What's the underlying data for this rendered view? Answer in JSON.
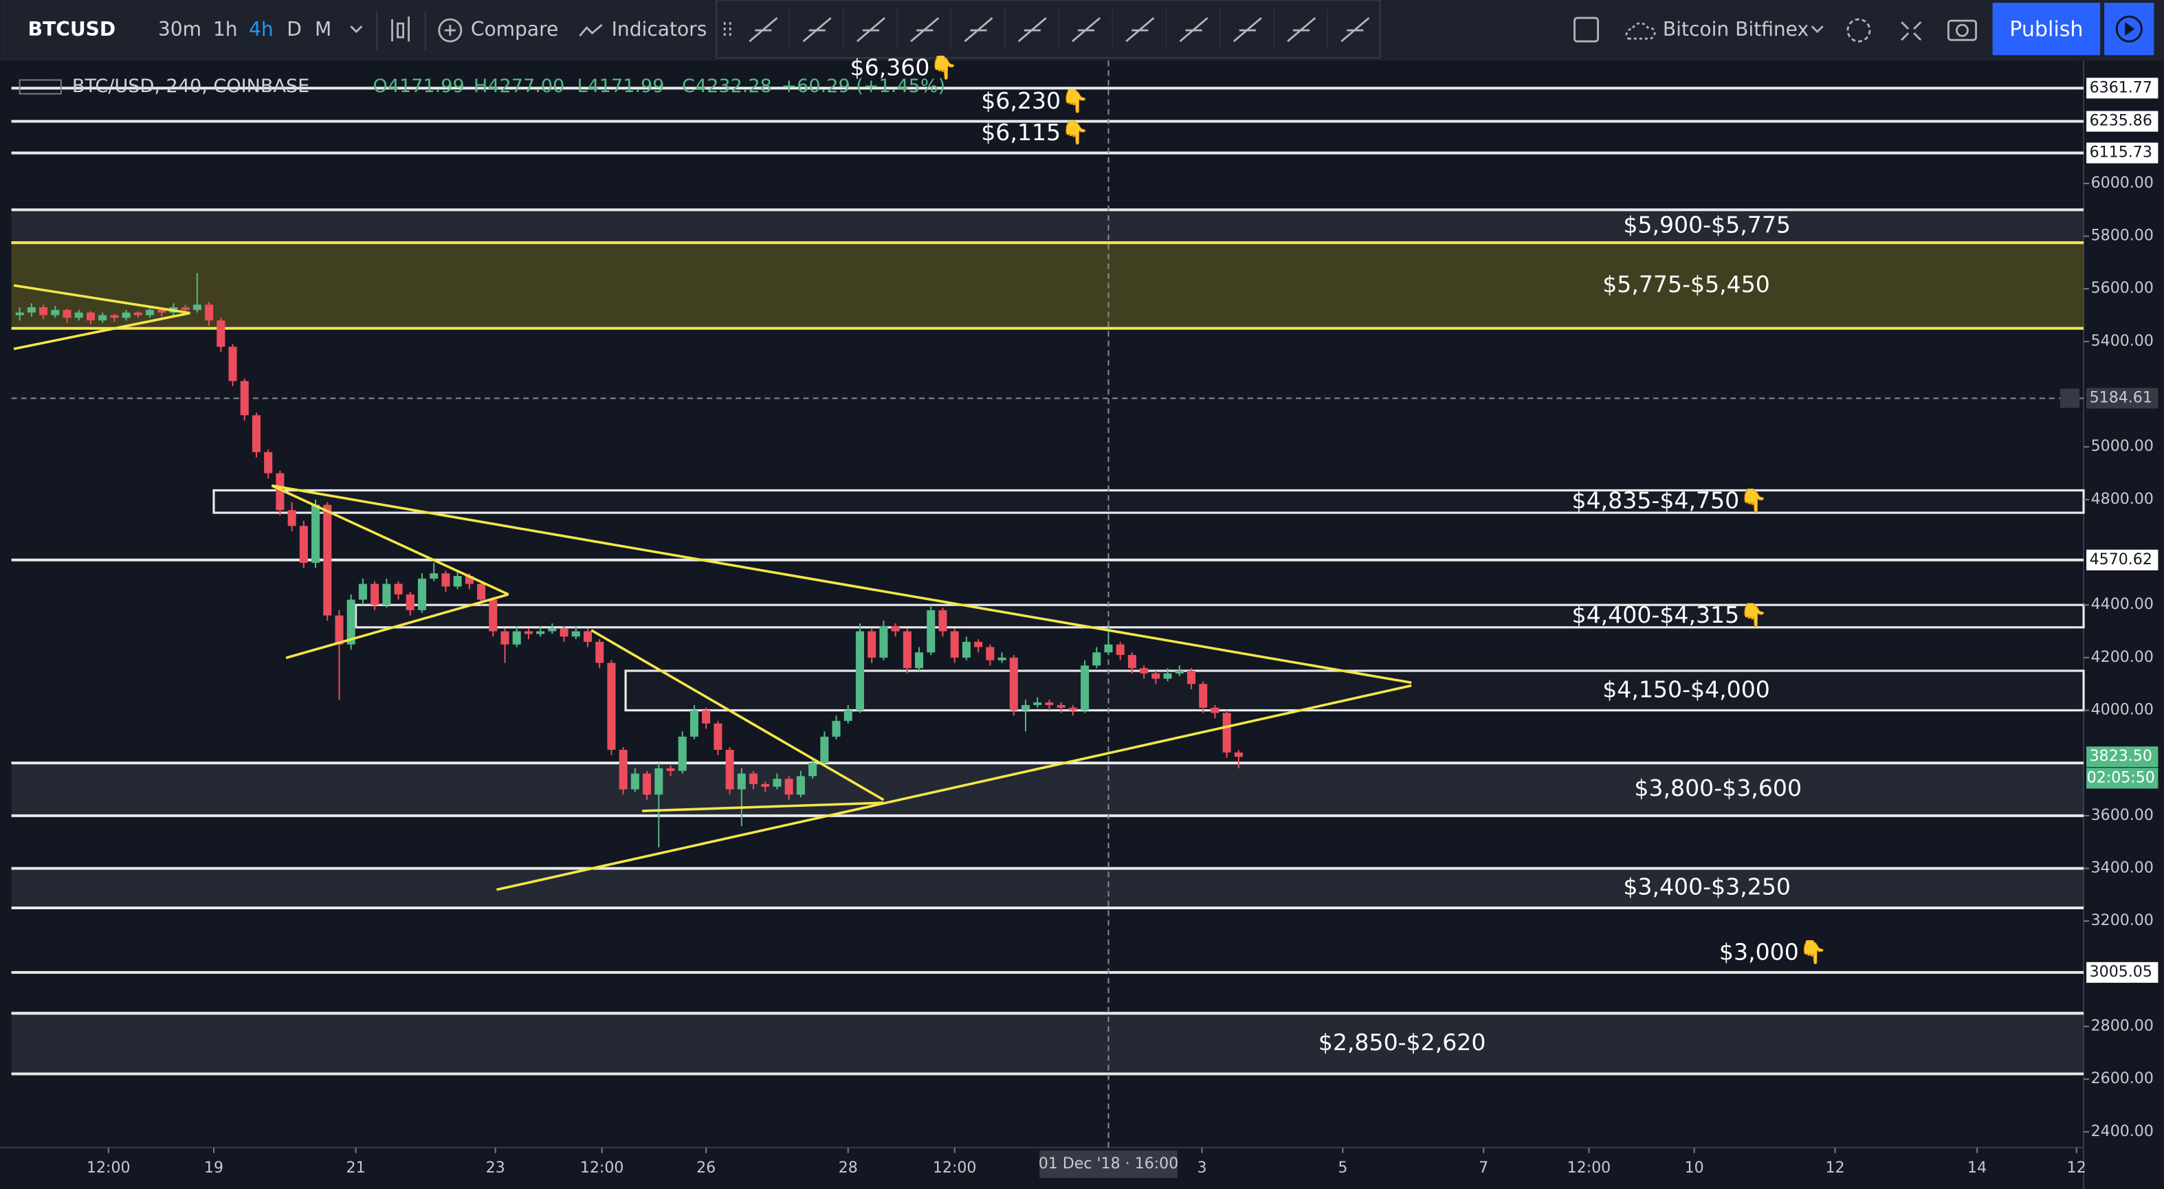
{
  "toolbar": {
    "symbol": "BTCUSD",
    "intervals": [
      "30m",
      "1h",
      "4h",
      "D",
      "M"
    ],
    "compare": "Compare",
    "indicators": "Indicators",
    "exchange": "Bitcoin Bitfinex",
    "publish": "Publish"
  },
  "chart_data": {
    "type": "candlestick",
    "title": "BTC/USD, 240, COINBASE",
    "legend_values": [
      "O4171.99",
      "H4277.00",
      "L4171.99",
      "C4232.28",
      "+60.29 (+1.45%)"
    ],
    "up_color": "#53b987",
    "down_color": "#eb4d5c",
    "candles": [
      [
        5500,
        5530,
        5480,
        5510
      ],
      [
        5510,
        5545,
        5495,
        5530
      ],
      [
        5530,
        5540,
        5485,
        5500
      ],
      [
        5500,
        5535,
        5490,
        5520
      ],
      [
        5520,
        5525,
        5470,
        5490
      ],
      [
        5490,
        5520,
        5480,
        5510
      ],
      [
        5510,
        5515,
        5465,
        5480
      ],
      [
        5480,
        5510,
        5470,
        5500
      ],
      [
        5500,
        5505,
        5475,
        5490
      ],
      [
        5490,
        5520,
        5480,
        5510
      ],
      [
        5510,
        5515,
        5490,
        5500
      ],
      [
        5500,
        5530,
        5490,
        5520
      ],
      [
        5520,
        5525,
        5495,
        5510
      ],
      [
        5510,
        5545,
        5500,
        5530
      ],
      [
        5530,
        5540,
        5505,
        5520
      ],
      [
        5520,
        5660,
        5510,
        5540
      ],
      [
        5540,
        5550,
        5460,
        5480
      ],
      [
        5480,
        5490,
        5360,
        5380
      ],
      [
        5380,
        5390,
        5230,
        5250
      ],
      [
        5250,
        5260,
        5100,
        5120
      ],
      [
        5120,
        5130,
        4960,
        4980
      ],
      [
        4980,
        4990,
        4880,
        4900
      ],
      [
        4900,
        4910,
        4740,
        4760
      ],
      [
        4760,
        4790,
        4680,
        4700
      ],
      [
        4700,
        4720,
        4540,
        4560
      ],
      [
        4560,
        4800,
        4540,
        4780
      ],
      [
        4780,
        4790,
        4340,
        4360
      ],
      [
        4360,
        4380,
        4040,
        4250
      ],
      [
        4250,
        4440,
        4230,
        4420
      ],
      [
        4420,
        4500,
        4400,
        4480
      ],
      [
        4480,
        4490,
        4380,
        4400
      ],
      [
        4400,
        4500,
        4390,
        4480
      ],
      [
        4480,
        4490,
        4420,
        4440
      ],
      [
        4440,
        4450,
        4360,
        4380
      ],
      [
        4380,
        4520,
        4370,
        4500
      ],
      [
        4500,
        4560,
        4490,
        4520
      ],
      [
        4520,
        4530,
        4450,
        4470
      ],
      [
        4470,
        4530,
        4460,
        4510
      ],
      [
        4510,
        4520,
        4460,
        4480
      ],
      [
        4480,
        4490,
        4400,
        4420
      ],
      [
        4420,
        4430,
        4280,
        4300
      ],
      [
        4300,
        4310,
        4180,
        4250
      ],
      [
        4250,
        4320,
        4240,
        4300
      ],
      [
        4300,
        4310,
        4270,
        4290
      ],
      [
        4290,
        4320,
        4280,
        4300
      ],
      [
        4300,
        4330,
        4290,
        4310
      ],
      [
        4310,
        4320,
        4260,
        4280
      ],
      [
        4280,
        4320,
        4270,
        4300
      ],
      [
        4300,
        4310,
        4240,
        4260
      ],
      [
        4260,
        4270,
        4160,
        4180
      ],
      [
        4180,
        4190,
        3830,
        3850
      ],
      [
        3850,
        3860,
        3680,
        3700
      ],
      [
        3700,
        3780,
        3690,
        3760
      ],
      [
        3760,
        3770,
        3660,
        3680
      ],
      [
        3680,
        3800,
        3480,
        3780
      ],
      [
        3780,
        3790,
        3750,
        3770
      ],
      [
        3770,
        3920,
        3760,
        3900
      ],
      [
        3900,
        4020,
        3890,
        4000
      ],
      [
        4000,
        4010,
        3930,
        3950
      ],
      [
        3950,
        3960,
        3830,
        3850
      ],
      [
        3850,
        3860,
        3680,
        3700
      ],
      [
        3700,
        3780,
        3560,
        3760
      ],
      [
        3760,
        3770,
        3700,
        3720
      ],
      [
        3720,
        3730,
        3690,
        3710
      ],
      [
        3710,
        3760,
        3700,
        3740
      ],
      [
        3740,
        3750,
        3660,
        3680
      ],
      [
        3680,
        3770,
        3670,
        3750
      ],
      [
        3750,
        3820,
        3740,
        3800
      ],
      [
        3800,
        3920,
        3790,
        3900
      ],
      [
        3900,
        3980,
        3890,
        3960
      ],
      [
        3960,
        4020,
        3950,
        4000
      ],
      [
        4000,
        4330,
        3990,
        4300
      ],
      [
        4300,
        4310,
        4180,
        4200
      ],
      [
        4200,
        4340,
        4190,
        4320
      ],
      [
        4320,
        4330,
        4280,
        4300
      ],
      [
        4300,
        4310,
        4140,
        4160
      ],
      [
        4160,
        4240,
        4150,
        4220
      ],
      [
        4220,
        4400,
        4210,
        4380
      ],
      [
        4380,
        4390,
        4280,
        4300
      ],
      [
        4300,
        4310,
        4180,
        4200
      ],
      [
        4200,
        4280,
        4190,
        4260
      ],
      [
        4260,
        4270,
        4220,
        4240
      ],
      [
        4240,
        4250,
        4170,
        4190
      ],
      [
        4190,
        4220,
        4180,
        4200
      ],
      [
        4200,
        4210,
        3980,
        4000
      ],
      [
        4000,
        4040,
        3920,
        4020
      ],
      [
        4020,
        4050,
        4010,
        4030
      ],
      [
        4030,
        4040,
        4000,
        4020
      ],
      [
        4020,
        4030,
        3990,
        4010
      ],
      [
        4010,
        4020,
        3980,
        4000
      ],
      [
        4000,
        4190,
        3990,
        4170
      ],
      [
        4170,
        4240,
        4160,
        4220
      ],
      [
        4220,
        4320,
        4210,
        4250
      ],
      [
        4250,
        4260,
        4190,
        4210
      ],
      [
        4210,
        4220,
        4140,
        4160
      ],
      [
        4160,
        4170,
        4120,
        4140
      ],
      [
        4140,
        4150,
        4100,
        4120
      ],
      [
        4120,
        4160,
        4110,
        4140
      ],
      [
        4140,
        4170,
        4130,
        4150
      ],
      [
        4150,
        4160,
        4080,
        4100
      ],
      [
        4100,
        4110,
        3990,
        4010
      ],
      [
        4010,
        4020,
        3970,
        3990
      ],
      [
        3990,
        4000,
        3820,
        3840
      ],
      [
        3840,
        3850,
        3780,
        3823.5
      ]
    ],
    "xlim": [
      -0.7,
      174.4
    ],
    "xticks": [
      {
        "value": 7.5,
        "label": "12:00"
      },
      {
        "value": 16.4,
        "label": "19"
      },
      {
        "value": 28.4,
        "label": "21"
      },
      {
        "value": 40.2,
        "label": "23"
      },
      {
        "value": 49.2,
        "label": "12:00"
      },
      {
        "value": 58,
        "label": "26"
      },
      {
        "value": 70,
        "label": "28"
      },
      {
        "value": 79,
        "label": "12:00"
      },
      {
        "value": 99.9,
        "label": "3"
      },
      {
        "value": 111.8,
        "label": "5"
      },
      {
        "value": 123.7,
        "label": "7"
      },
      {
        "value": 132.6,
        "label": "12:00"
      },
      {
        "value": 141.5,
        "label": "10"
      },
      {
        "value": 153.4,
        "label": "12"
      },
      {
        "value": 165.4,
        "label": "14"
      },
      {
        "value": 173.8,
        "label": "12"
      }
    ],
    "ylim": [
      2340,
      6466
    ],
    "yticks": [
      {
        "value": 2400,
        "label": "2400.00"
      },
      {
        "value": 2600,
        "label": "2600.00"
      },
      {
        "value": 2800,
        "label": "2800.00"
      },
      {
        "value": 3200,
        "label": "3200.00"
      },
      {
        "value": 3400,
        "label": "3400.00"
      },
      {
        "value": 3600,
        "label": "3600.00"
      },
      {
        "value": 4000,
        "label": "4000.00"
      },
      {
        "value": 4200,
        "label": "4200.00"
      },
      {
        "value": 4400,
        "label": "4400.00"
      },
      {
        "value": 4800,
        "label": "4800.00"
      },
      {
        "value": 5000,
        "label": "5000.00"
      },
      {
        "value": 5400,
        "label": "5400.00"
      },
      {
        "value": 5600,
        "label": "5600.00"
      },
      {
        "value": 5800,
        "label": "5800.00"
      },
      {
        "value": 6000,
        "label": "6000.00"
      }
    ],
    "zones": [
      {
        "label": "$5,900-$5,775",
        "top": 5900,
        "bottom": 5775,
        "style": "shaded"
      },
      {
        "label": "$5,775-$5,450",
        "top": 5775,
        "bottom": 5450,
        "style": "yellow"
      },
      {
        "label": "$4,835-$4,750👇",
        "top": 4835,
        "bottom": 4750,
        "style": "box",
        "start": 16.4
      },
      {
        "label": "$4,400-$4,315👇",
        "top": 4400,
        "bottom": 4315,
        "style": "box",
        "start": 28.4
      },
      {
        "label": "$4,150-$4,000",
        "top": 4150,
        "bottom": 4000,
        "style": "box",
        "start": 51.2
      },
      {
        "label": "$3,800-$3,600",
        "top": 3800,
        "bottom": 3600,
        "style": "shaded"
      },
      {
        "label": "$3,400-$3,250",
        "top": 3400,
        "bottom": 3250,
        "style": "shaded"
      },
      {
        "label": "$2,850-$2,620",
        "top": 2850,
        "bottom": 2620,
        "style": "shaded"
      }
    ],
    "levels": [
      {
        "value": 6361.77,
        "label": "$6,360👇"
      },
      {
        "value": 6235.86,
        "label": "$6,230👇"
      },
      {
        "value": 6115.73,
        "label": "$6,115👇"
      },
      {
        "value": 4570.62
      },
      {
        "value": 3005.05,
        "label": "$3,000👇"
      }
    ],
    "trendlines": [
      [
        -0.5,
        5613,
        14.4,
        5508
      ],
      [
        -0.5,
        5372,
        14.4,
        5508
      ],
      [
        21.3,
        4853,
        41.3,
        4440
      ],
      [
        21.3,
        4853,
        117.6,
        4105
      ],
      [
        22.5,
        4199,
        41.3,
        4440
      ],
      [
        40.3,
        3319,
        117.6,
        4094
      ],
      [
        48.3,
        4304,
        73,
        3660
      ],
      [
        52.6,
        3618,
        73,
        3649
      ]
    ],
    "trendline_color": "#f5e64a",
    "price_labels": [
      {
        "value": 6361.77,
        "style": "level"
      },
      {
        "value": 6235.86,
        "style": "level"
      },
      {
        "value": 6115.73,
        "style": "level"
      },
      {
        "value": 4570.62,
        "style": "level"
      },
      {
        "value": 3005.05,
        "style": "level"
      },
      {
        "value": {
          "value": 3823.5,
          "label": "3823.50"
        },
        "style": "last"
      }
    ],
    "countdown": "02:05:50",
    "crosshair": {
      "x": 92,
      "y": 5184.61,
      "x_label": "01 Dec '18 · 16:00"
    }
  }
}
